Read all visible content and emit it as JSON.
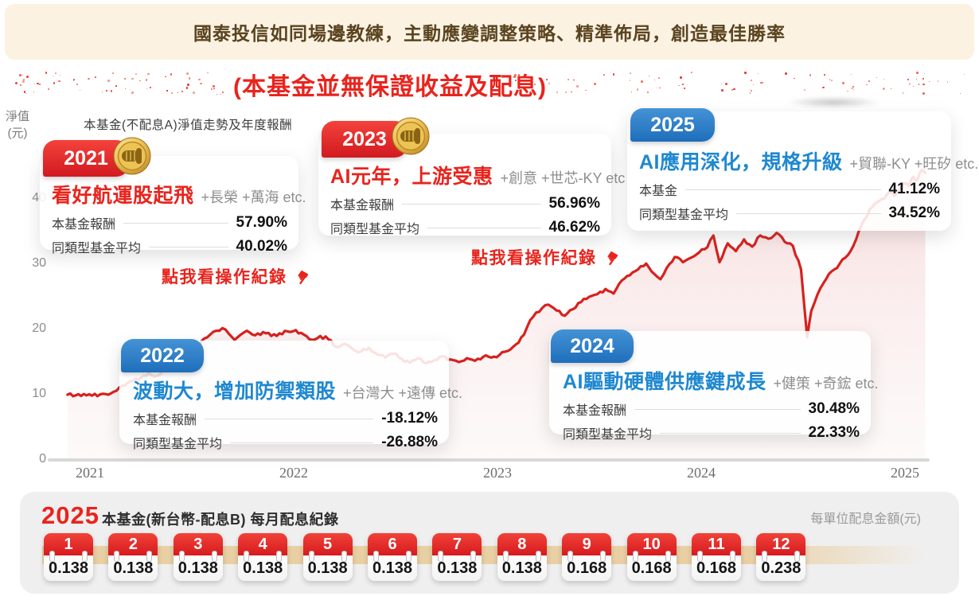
{
  "banner": {
    "text": "國泰投信如同場邊教練，主動應變調整策略、精準佈局，創造最佳勝率"
  },
  "notice": {
    "visible_text": "(本基金並無保證收益及配息)"
  },
  "colors": {
    "accent_red": "#E8241D",
    "accent_blue": "#1E88D0",
    "nav_line": "#D7211E",
    "area_fill": "#F8DEDE",
    "banner_bg": "#FBF2E2",
    "banner_text": "#5A4420",
    "tan_band": "#E9D0A4",
    "panel_bg": "#F0EFEF"
  },
  "chart": {
    "title": "本基金(不配息A)淨值走勢及年度報酬",
    "y_axis_label_line1": "淨值",
    "y_axis_label_line2": "(元)",
    "y_ticks": [
      40,
      30,
      20,
      10,
      0
    ],
    "x_ticks": [
      "2021",
      "2022",
      "2023",
      "2024",
      "2025"
    ]
  },
  "chart_data": {
    "type": "line",
    "title": "本基金(不配息A)淨值走勢及年度報酬",
    "xlabel": "",
    "ylabel": "淨值(元)",
    "xlim": [
      2020.85,
      2025.2
    ],
    "ylim": [
      0,
      47
    ],
    "grid": false,
    "legend": "none",
    "x": [
      2020.89,
      2020.93,
      2020.97,
      2021.01,
      2021.05,
      2021.09,
      2021.13,
      2021.17,
      2021.21,
      2021.25,
      2021.29,
      2021.33,
      2021.37,
      2021.41,
      2021.45,
      2021.49,
      2021.53,
      2021.56,
      2021.59,
      2021.62,
      2021.65,
      2021.68,
      2021.71,
      2021.74,
      2021.77,
      2021.81,
      2021.85,
      2021.89,
      2021.93,
      2021.97,
      2022.01,
      2022.05,
      2022.09,
      2022.13,
      2022.17,
      2022.21,
      2022.25,
      2022.29,
      2022.33,
      2022.37,
      2022.41,
      2022.45,
      2022.49,
      2022.53,
      2022.57,
      2022.61,
      2022.65,
      2022.69,
      2022.73,
      2022.77,
      2022.81,
      2022.85,
      2022.89,
      2022.93,
      2022.97,
      2023.01,
      2023.05,
      2023.09,
      2023.13,
      2023.16,
      2023.19,
      2023.22,
      2023.25,
      2023.29,
      2023.33,
      2023.37,
      2023.41,
      2023.45,
      2023.49,
      2023.53,
      2023.57,
      2023.61,
      2023.65,
      2023.69,
      2023.73,
      2023.77,
      2023.8,
      2023.83,
      2023.87,
      2023.91,
      2023.95,
      2023.99,
      2024.03,
      2024.06,
      2024.09,
      2024.13,
      2024.17,
      2024.21,
      2024.25,
      2024.29,
      2024.33,
      2024.37,
      2024.41,
      2024.45,
      2024.49,
      2024.52,
      2024.54,
      2024.57,
      2024.6,
      2024.64,
      2024.68,
      2024.72,
      2024.76,
      2024.8,
      2024.84,
      2024.87,
      2024.9,
      2024.92,
      2024.95,
      2024.98,
      2025.0,
      2025.02,
      2025.04,
      2025.06,
      2025.08,
      2025.1
    ],
    "y": [
      10.0,
      9.9,
      10.1,
      9.85,
      10.05,
      10.0,
      10.6,
      11.4,
      12.1,
      12.6,
      13.3,
      12.9,
      13.9,
      14.9,
      15.7,
      16.4,
      17.1,
      18.6,
      19.2,
      19.8,
      20.2,
      19.4,
      18.4,
      19.2,
      19.8,
      19.1,
      19.6,
      19.0,
      19.4,
      19.7,
      19.9,
      19.2,
      18.4,
      19.0,
      18.5,
      17.3,
      17.8,
      17.0,
      16.6,
      17.2,
      16.2,
      15.7,
      16.3,
      15.5,
      14.9,
      15.6,
      14.8,
      15.3,
      15.9,
      15.4,
      15.0,
      15.6,
      15.2,
      15.8,
      15.7,
      16.1,
      16.7,
      17.7,
      19.2,
      21.4,
      22.6,
      23.3,
      23.8,
      22.9,
      22.1,
      23.1,
      24.2,
      25.0,
      25.4,
      26.2,
      25.5,
      27.5,
      28.3,
      29.2,
      30.1,
      28.5,
      27.7,
      29.4,
      31.1,
      30.3,
      31.0,
      31.8,
      32.6,
      34.4,
      30.3,
      33.2,
      32.0,
      33.8,
      32.7,
      34.4,
      33.9,
      34.8,
      33.4,
      32.8,
      29.2,
      18.8,
      22.8,
      25.3,
      27.1,
      28.9,
      30.1,
      31.4,
      33.8,
      36.8,
      38.8,
      39.6,
      40.1,
      41.0,
      40.5,
      41.8,
      42.4,
      42.0,
      43.4,
      42.9,
      44.4,
      44.0
    ]
  },
  "chart_annotations": [
    {
      "year": "2021",
      "theme": "看好航運股起飛",
      "holdings": "+長榮 +萬海 etc.",
      "rows": [
        {
          "label": "本基金報酬",
          "value": "57.90%"
        },
        {
          "label": "同類型基金平均",
          "value": "40.02%"
        }
      ],
      "accent": "red",
      "medal": true,
      "action_link": "點我看操作紀錄"
    },
    {
      "year": "2022",
      "theme": "波動大，增加防禦類股",
      "holdings": "+台灣大 +遠傳 etc.",
      "rows": [
        {
          "label": "本基金報酬",
          "value": "-18.12%"
        },
        {
          "label": "同類型基金平均",
          "value": "-26.88%"
        }
      ],
      "accent": "blue",
      "medal": false
    },
    {
      "year": "2023",
      "theme": "AI元年，上游受惠",
      "holdings": "+創意 +世芯-KY etc",
      "rows": [
        {
          "label": "本基金報酬",
          "value": "56.96%"
        },
        {
          "label": "同類型基金平均",
          "value": "46.62%"
        }
      ],
      "accent": "red",
      "medal": true,
      "action_link": "點我看操作紀錄"
    },
    {
      "year": "2024",
      "theme": "AI驅動硬體供應鍵成長",
      "holdings": "+健策 +奇鋐 etc.",
      "rows": [
        {
          "label": "本基金報酬",
          "value": "30.48%"
        },
        {
          "label": "同類型基金平均",
          "value": "22.33%"
        }
      ],
      "accent": "blue",
      "medal": false
    },
    {
      "year": "2025",
      "theme": "AI應用深化，規格升級",
      "holdings": "+貿聯-KY +旺矽 etc.",
      "rows": [
        {
          "label": "本基金",
          "value": "41.12%"
        },
        {
          "label": "同類型基金平均",
          "value": "34.52%"
        }
      ],
      "accent": "blue",
      "medal": false
    }
  ],
  "dividends": {
    "year": "2025",
    "subtitle": "本基金(新台幣-配息B) 每月配息紀錄",
    "unit_label": "每單位配息金額(元)",
    "months": [
      {
        "month": "1",
        "value": "0.138"
      },
      {
        "month": "2",
        "value": "0.138"
      },
      {
        "month": "3",
        "value": "0.138"
      },
      {
        "month": "4",
        "value": "0.138"
      },
      {
        "month": "5",
        "value": "0.138"
      },
      {
        "month": "6",
        "value": "0.138"
      },
      {
        "month": "7",
        "value": "0.138"
      },
      {
        "month": "8",
        "value": "0.138"
      },
      {
        "month": "9",
        "value": "0.168"
      },
      {
        "month": "10",
        "value": "0.168"
      },
      {
        "month": "11",
        "value": "0.168"
      },
      {
        "month": "12",
        "value": "0.238"
      }
    ]
  }
}
